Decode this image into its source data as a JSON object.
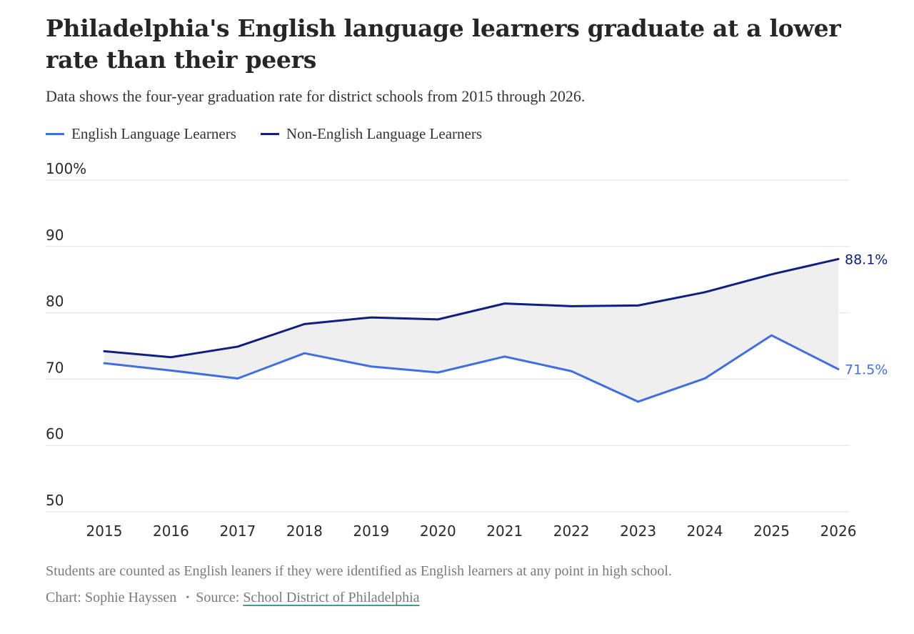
{
  "title": "Philadelphia's English language learners graduate at a lower rate than their peers",
  "subtitle": "Data shows the four-year graduation rate for district schools from 2015 through 2026.",
  "legend": {
    "ell_label": "English Language Learners",
    "non_ell_label": "Non-English Language Learners"
  },
  "footnote": "Students are counted as English leaners if they were identified as English learners at any point in high school.",
  "credits": {
    "chart_by": "Chart: Sophie Hayssen",
    "separator": "•",
    "source_prefix": "Source:",
    "source_link": "School District of Philadelphia"
  },
  "colors": {
    "ell": "#3f6fe0",
    "non_ell": "#0f1f80",
    "gap_fill": "#efefef",
    "grid": "#e2e2e2"
  },
  "chart_data": {
    "type": "line",
    "title": "Philadelphia's English language learners graduate at a lower rate than their peers",
    "x": [
      "2015",
      "2016",
      "2017",
      "2018",
      "2019",
      "2020",
      "2021",
      "2022",
      "2023",
      "2024",
      "2025",
      "2026"
    ],
    "series": [
      {
        "name": "English Language Learners",
        "values": [
          72.4,
          71.3,
          70.1,
          73.9,
          71.9,
          71.0,
          73.4,
          71.2,
          66.6,
          70.1,
          76.6,
          71.5
        ],
        "end_label": "71.5%"
      },
      {
        "name": "Non-English Language Learners",
        "values": [
          74.2,
          73.3,
          74.9,
          78.3,
          79.3,
          79.0,
          81.4,
          81.0,
          81.1,
          83.1,
          85.8,
          88.1
        ],
        "end_label": "88.1%"
      }
    ],
    "y_ticks": [
      {
        "value": 50,
        "label": "50"
      },
      {
        "value": 60,
        "label": "60"
      },
      {
        "value": 70,
        "label": "70"
      },
      {
        "value": 80,
        "label": "80"
      },
      {
        "value": 90,
        "label": "90"
      },
      {
        "value": 100,
        "label": "100%"
      }
    ],
    "ylim": [
      50,
      100
    ],
    "grid": true,
    "gap_shaded": true,
    "legend_position": "top-left"
  }
}
